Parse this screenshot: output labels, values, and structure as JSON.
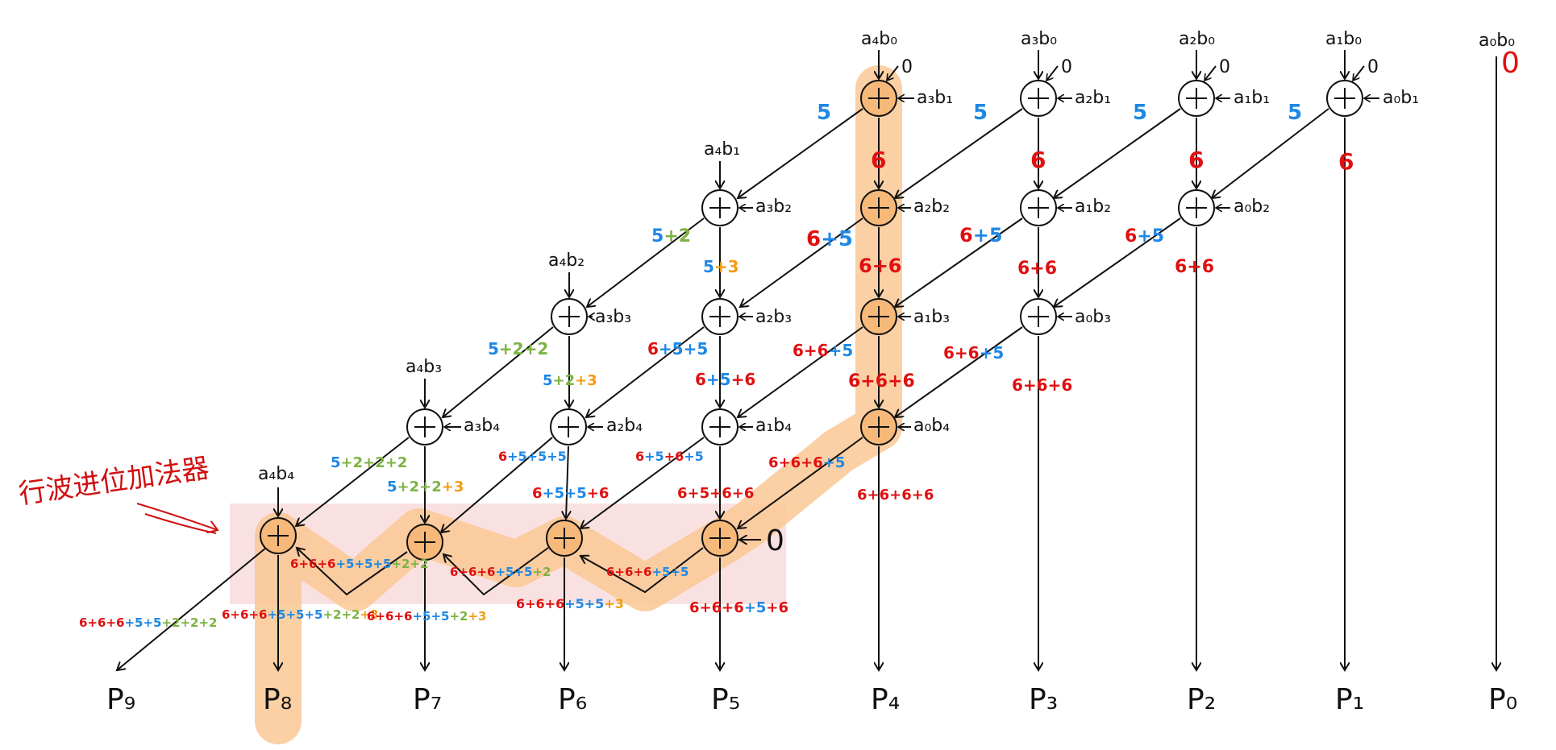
{
  "annotation": "行波进位加法器",
  "zero_right": "0",
  "row0_inputs_top": [
    "a₄b₀",
    "a₃b₀",
    "a₂b₀",
    "a₁b₀"
  ],
  "row0_inputs_right": [
    "a₃b₁",
    "a₂b₁",
    "a₁b₁",
    "a₀b₁"
  ],
  "row0_carry_in": [
    "0",
    "0",
    "0",
    "0"
  ],
  "p0_term": "a₀b₀",
  "p0_zero": "0",
  "top_inputs": [
    "a₄b₁",
    "a₄b₂",
    "a₄b₃",
    "a₄b₄"
  ],
  "row1_right": [
    "a₃b₂",
    "a₂b₂",
    "a₁b₂",
    "a₀b₂"
  ],
  "row2_right": [
    "a₃b₃",
    "a₂b₃",
    "a₁b₃",
    "a₀b₃"
  ],
  "row3_right": [
    "a₃b₄",
    "a₂b₄",
    "a₁b₄",
    "a₀b₄"
  ],
  "rca_carry_in": "0",
  "outputs": [
    "P₉",
    "P₈",
    "P₇",
    "P₆",
    "P₅",
    "P₄",
    "P₃",
    "P₂",
    "P₁",
    "P₀"
  ],
  "delays": [
    {
      "id": "d1",
      "segs": [
        [
          "5",
          "blue"
        ]
      ]
    },
    {
      "id": "d2",
      "segs": [
        [
          "5",
          "blue"
        ]
      ]
    },
    {
      "id": "d3",
      "segs": [
        [
          "5",
          "blue"
        ]
      ]
    },
    {
      "id": "d4",
      "segs": [
        [
          "5",
          "blue"
        ]
      ]
    },
    {
      "id": "d5",
      "segs": [
        [
          "6",
          "red"
        ]
      ]
    },
    {
      "id": "d6",
      "segs": [
        [
          "6",
          "red"
        ]
      ]
    },
    {
      "id": "d7",
      "segs": [
        [
          "6",
          "red"
        ]
      ]
    },
    {
      "id": "d8",
      "segs": [
        [
          "6",
          "red"
        ]
      ]
    },
    {
      "id": "d9",
      "segs": [
        [
          "5",
          "blue"
        ],
        [
          "+2",
          "green"
        ]
      ]
    },
    {
      "id": "d10",
      "segs": [
        [
          "6",
          "red"
        ],
        [
          "+5",
          "blue"
        ]
      ]
    },
    {
      "id": "d11",
      "segs": [
        [
          "6",
          "red"
        ],
        [
          "+5",
          "blue"
        ]
      ]
    },
    {
      "id": "d12",
      "segs": [
        [
          "6",
          "red"
        ],
        [
          "+5",
          "blue"
        ]
      ]
    },
    {
      "id": "d13",
      "segs": [
        [
          "5",
          "blue"
        ],
        [
          "+3",
          "orange"
        ]
      ]
    },
    {
      "id": "d14",
      "segs": [
        [
          "6+6",
          "red"
        ]
      ]
    },
    {
      "id": "d15",
      "segs": [
        [
          "6+6",
          "red"
        ]
      ]
    },
    {
      "id": "d16",
      "segs": [
        [
          "6+6",
          "red"
        ]
      ]
    },
    {
      "id": "d17",
      "segs": [
        [
          "5",
          "blue"
        ],
        [
          "+2+2",
          "green"
        ]
      ]
    },
    {
      "id": "d18",
      "segs": [
        [
          "6",
          "red"
        ],
        [
          "+5+5",
          "blue"
        ]
      ]
    },
    {
      "id": "d19",
      "segs": [
        [
          "6+6",
          "red"
        ],
        [
          "+5",
          "blue"
        ]
      ]
    },
    {
      "id": "d20",
      "segs": [
        [
          "6+6",
          "red"
        ],
        [
          "+5",
          "blue"
        ]
      ]
    },
    {
      "id": "d21",
      "segs": [
        [
          "5",
          "blue"
        ],
        [
          "+2",
          "green"
        ],
        [
          "+3",
          "orange"
        ]
      ]
    },
    {
      "id": "d22",
      "segs": [
        [
          "6",
          "red"
        ],
        [
          "+5",
          "blue"
        ],
        [
          "+6",
          "red"
        ]
      ]
    },
    {
      "id": "d23",
      "segs": [
        [
          "6+6+6",
          "red"
        ]
      ]
    },
    {
      "id": "d24",
      "segs": [
        [
          "6+6+6",
          "red"
        ]
      ]
    },
    {
      "id": "d25",
      "segs": [
        [
          "5",
          "blue"
        ],
        [
          "+2+2+2",
          "green"
        ]
      ]
    },
    {
      "id": "d26",
      "segs": [
        [
          "6",
          "red"
        ],
        [
          "+5+5+5",
          "blue"
        ]
      ]
    },
    {
      "id": "d27",
      "segs": [
        [
          "6",
          "red"
        ],
        [
          "+5",
          "blue"
        ],
        [
          "+6",
          "red"
        ],
        [
          "+5",
          "blue"
        ]
      ]
    },
    {
      "id": "d28",
      "segs": [
        [
          "6+6+6",
          "red"
        ],
        [
          "+5",
          "blue"
        ]
      ]
    },
    {
      "id": "d29",
      "segs": [
        [
          "5",
          "blue"
        ],
        [
          "+2+2",
          "green"
        ],
        [
          "+3",
          "orange"
        ]
      ]
    },
    {
      "id": "d30",
      "segs": [
        [
          "6",
          "red"
        ],
        [
          "+5+5",
          "blue"
        ],
        [
          "+6",
          "red"
        ]
      ]
    },
    {
      "id": "d31",
      "segs": [
        [
          "6+5+6+6",
          "red"
        ]
      ]
    },
    {
      "id": "d32",
      "segs": [
        [
          "6+6+6+6",
          "red"
        ]
      ]
    },
    {
      "id": "d33",
      "segs": [
        [
          "6+6+6",
          "red"
        ],
        [
          "+5+5+5",
          "blue"
        ],
        [
          "+2+2",
          "green"
        ]
      ]
    },
    {
      "id": "d34",
      "segs": [
        [
          "6+6+6",
          "red"
        ],
        [
          "+5+5",
          "blue"
        ],
        [
          "+2",
          "green"
        ]
      ]
    },
    {
      "id": "d35",
      "segs": [
        [
          "6+6+6",
          "red"
        ],
        [
          "+5+5",
          "blue"
        ]
      ]
    },
    {
      "id": "d36",
      "segs": [
        [
          "6+6+6",
          "red"
        ],
        [
          "+5+5",
          "blue"
        ],
        [
          "+2+2+2",
          "green"
        ]
      ]
    },
    {
      "id": "d37",
      "segs": [
        [
          "6+6+6",
          "red"
        ],
        [
          "+5+5+5",
          "blue"
        ],
        [
          "+2+2",
          "green"
        ],
        [
          "+3",
          "orange"
        ]
      ]
    },
    {
      "id": "d38",
      "segs": [
        [
          "6+6+6",
          "red"
        ],
        [
          "+5+5",
          "blue"
        ],
        [
          "+2",
          "green"
        ],
        [
          "+3",
          "orange"
        ]
      ]
    },
    {
      "id": "d39",
      "segs": [
        [
          "6+6+6",
          "red"
        ],
        [
          "+5+5",
          "blue"
        ],
        [
          "+3",
          "orange"
        ]
      ]
    },
    {
      "id": "d40",
      "segs": [
        [
          "6+6+6",
          "red"
        ],
        [
          "+5",
          "blue"
        ],
        [
          "+6",
          "red"
        ]
      ]
    }
  ],
  "colors": {
    "red": "#e01010",
    "blue": "#1e88e5",
    "green": "#7cb342",
    "orange": "#f39c12",
    "highlight": "#f9c894",
    "rca_box": "#f8d7d7"
  }
}
